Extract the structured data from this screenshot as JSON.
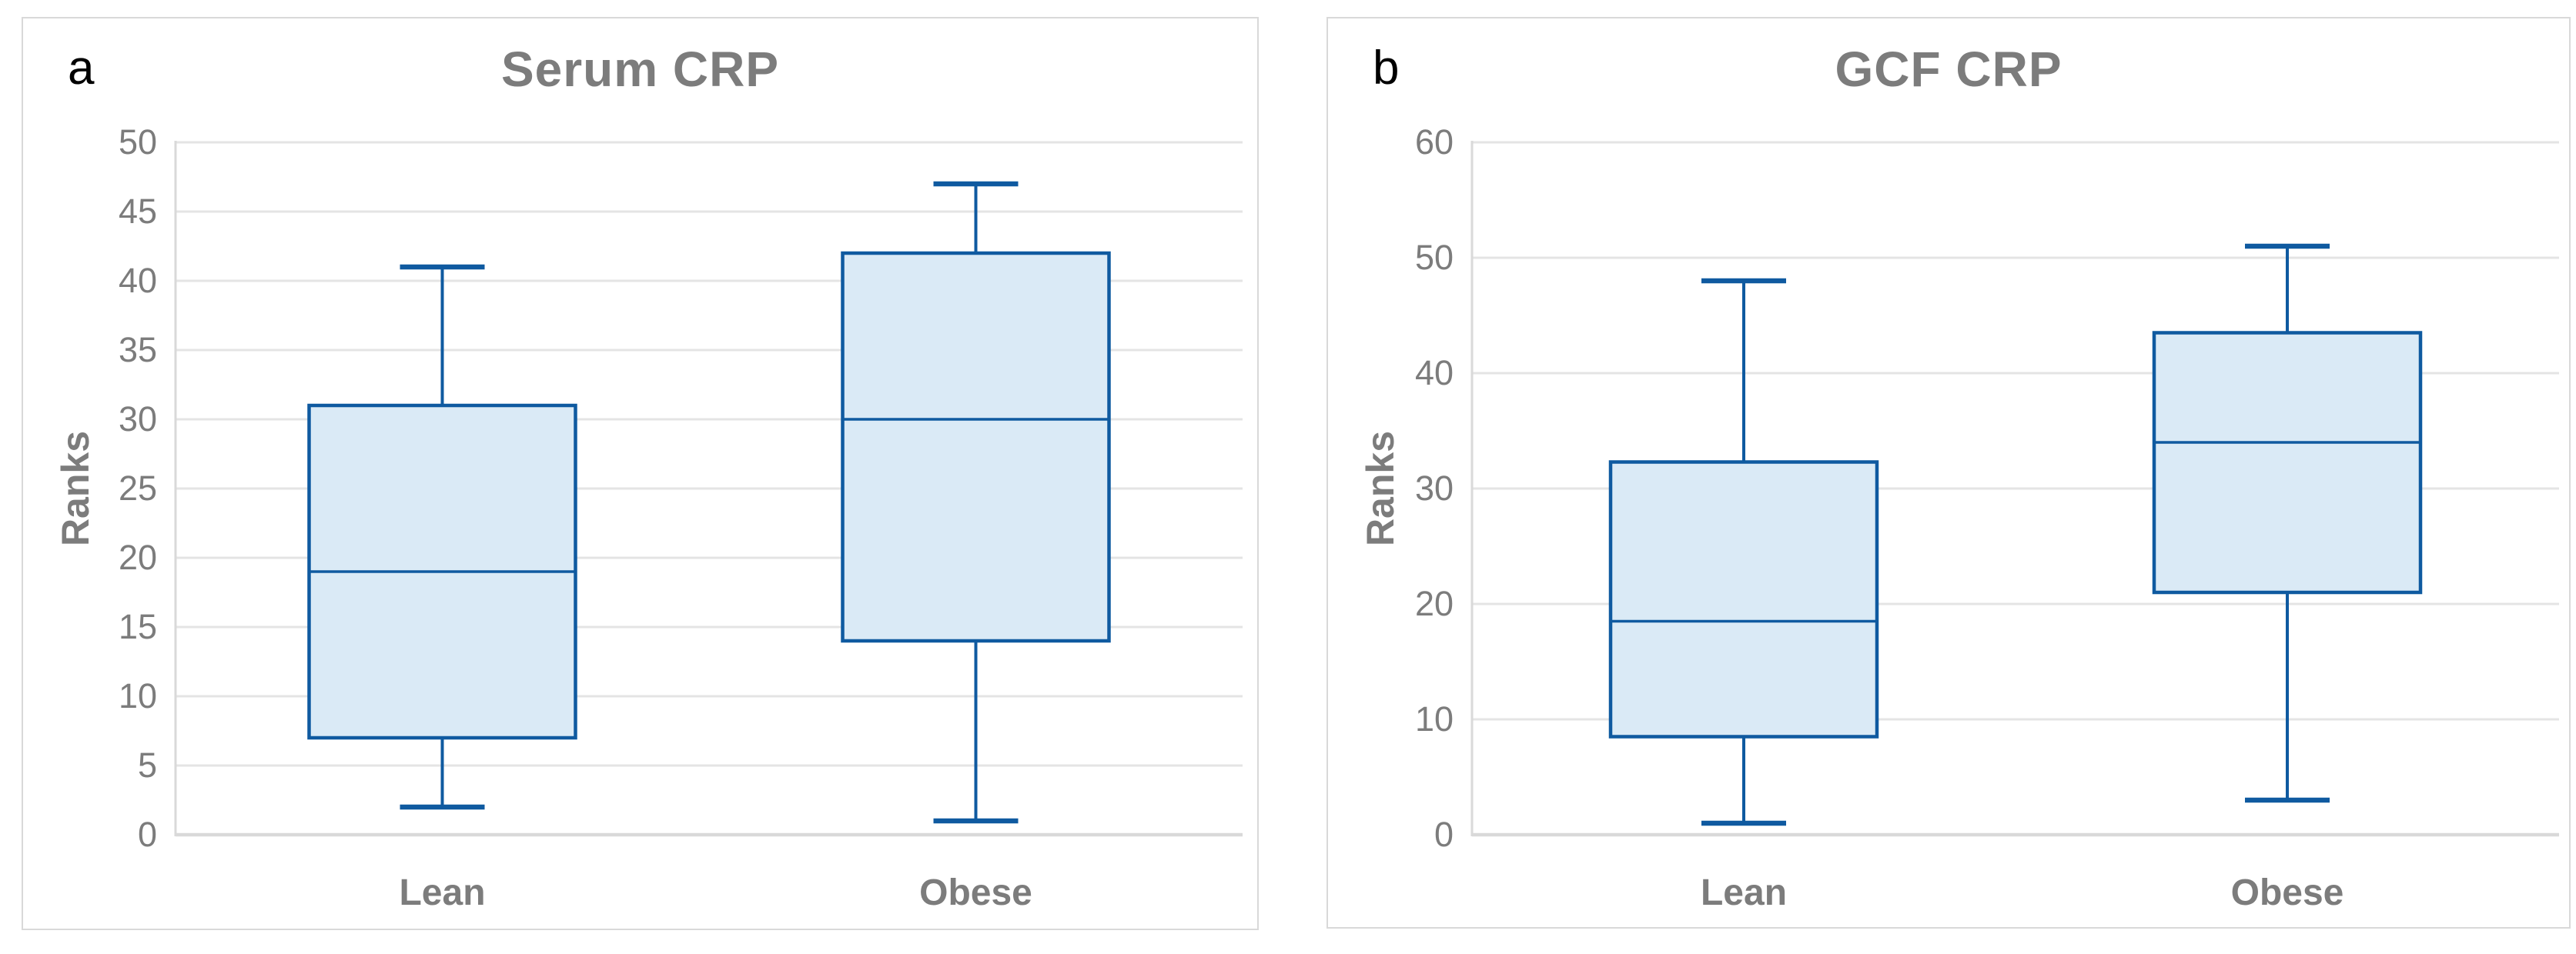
{
  "colors": {
    "box_fill": "#DAEAF6",
    "box_border": "#0F5AA0",
    "gridline": "#E4E4E4",
    "zero_axis_line": "#D9D9D9",
    "axis_line": "#D9D9D9",
    "text_gray": "#7C7C7C",
    "panel_border": "#D9D9D9",
    "panel_letter_color": "#000000",
    "background": "#FFFFFF"
  },
  "chart_data": [
    {
      "panel_label": "a",
      "type": "boxplot",
      "title": "Serum CRP",
      "ylabel": "Ranks",
      "xlabel": "",
      "ylim": [
        0,
        50
      ],
      "ytick_step": 5,
      "yticks": [
        0,
        5,
        10,
        15,
        20,
        25,
        30,
        35,
        40,
        45,
        50
      ],
      "grid": true,
      "legend": "none",
      "categories": [
        "Lean",
        "Obese"
      ],
      "series": [
        {
          "category": "Lean",
          "min": 2,
          "q1": 7,
          "median": 19,
          "q3": 31,
          "max": 41
        },
        {
          "category": "Obese",
          "min": 1,
          "q1": 14,
          "median": 30,
          "q3": 42,
          "max": 47
        }
      ]
    },
    {
      "panel_label": "b",
      "type": "boxplot",
      "title": "GCF CRP",
      "ylabel": "Ranks",
      "xlabel": "",
      "ylim": [
        0,
        60
      ],
      "ytick_step": 10,
      "yticks": [
        0,
        10,
        20,
        30,
        40,
        50,
        60
      ],
      "grid": true,
      "legend": "none",
      "categories": [
        "Lean",
        "Obese"
      ],
      "series": [
        {
          "category": "Lean",
          "min": 1,
          "q1": 8.5,
          "median": 18.5,
          "q3": 32.3,
          "max": 48
        },
        {
          "category": "Obese",
          "min": 3,
          "q1": 21,
          "median": 34,
          "q3": 43.5,
          "max": 51
        }
      ]
    }
  ]
}
